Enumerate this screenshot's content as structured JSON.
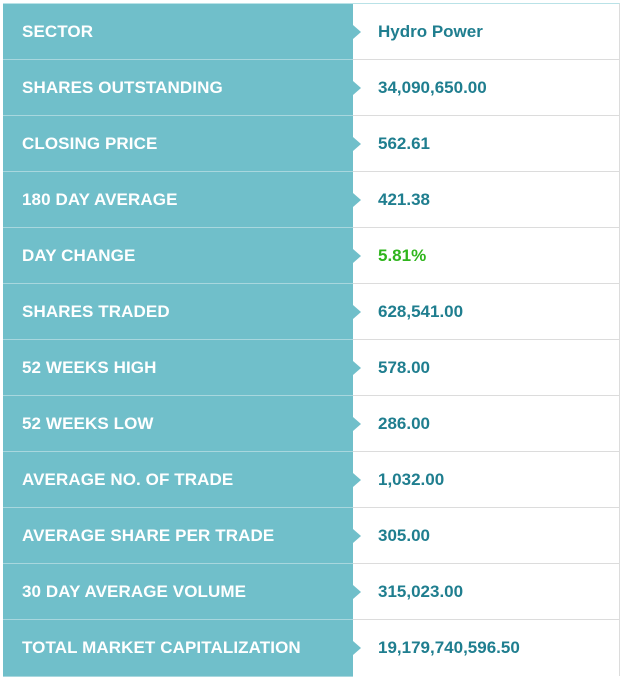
{
  "rows": [
    {
      "label": "SECTOR",
      "value": "Hydro Power"
    },
    {
      "label": "SHARES OUTSTANDING",
      "value": "34,090,650.00"
    },
    {
      "label": "CLOSING PRICE",
      "value": "562.61"
    },
    {
      "label": "180 DAY AVERAGE",
      "value": "421.38"
    },
    {
      "label": "DAY CHANGE",
      "value": "5.81%"
    },
    {
      "label": "SHARES TRADED",
      "value": "628,541.00"
    },
    {
      "label": "52 WEEKS HIGH",
      "value": "578.00"
    },
    {
      "label": "52 WEEKS LOW",
      "value": "286.00"
    },
    {
      "label": "AVERAGE NO. OF TRADE",
      "value": "1,032.00"
    },
    {
      "label": "AVERAGE SHARE PER TRADE",
      "value": "305.00"
    },
    {
      "label": "30 DAY AVERAGE VOLUME",
      "value": "315,023.00"
    },
    {
      "label": "TOTAL MARKET CAPITALIZATION",
      "value": "19,179,740,596.50"
    }
  ],
  "colors": {
    "label_bg": "#70bfca",
    "value_text": "#1f7e8f",
    "positive_change": "#2fb51d"
  }
}
